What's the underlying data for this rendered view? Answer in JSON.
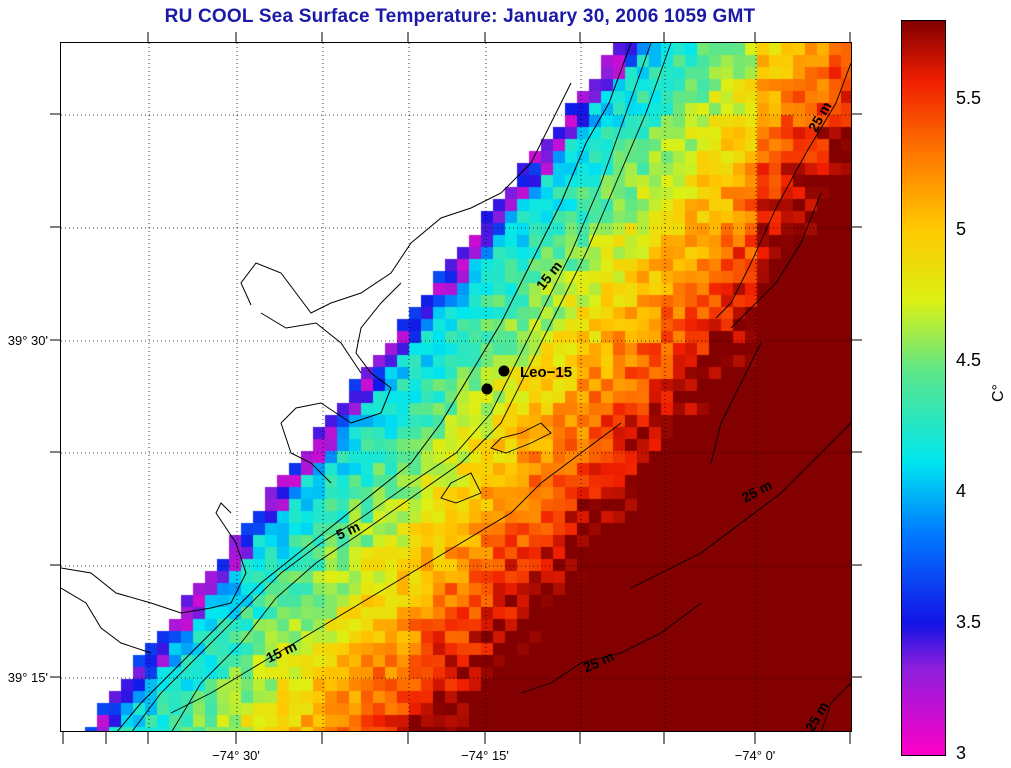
{
  "title": "RU COOL  Sea Surface Temperature:  January 30, 2006 1059 GMT",
  "map": {
    "lon_ticks": [
      "−74° 30'",
      "−74° 15'",
      "−74° 0'"
    ],
    "lat_ticks": [
      "39° 30'",
      "39° 15'"
    ],
    "station_label": "Leo−15",
    "contour_labels": [
      "5 m",
      "15 m",
      "15 m",
      "25 m",
      "25 m",
      "25 m",
      "25 m"
    ]
  },
  "colorbar": {
    "unit": "C°",
    "ticks": [
      "3",
      "3.5",
      "4",
      "4.5",
      "5",
      "5.5"
    ],
    "range": [
      3,
      5.8
    ]
  }
}
